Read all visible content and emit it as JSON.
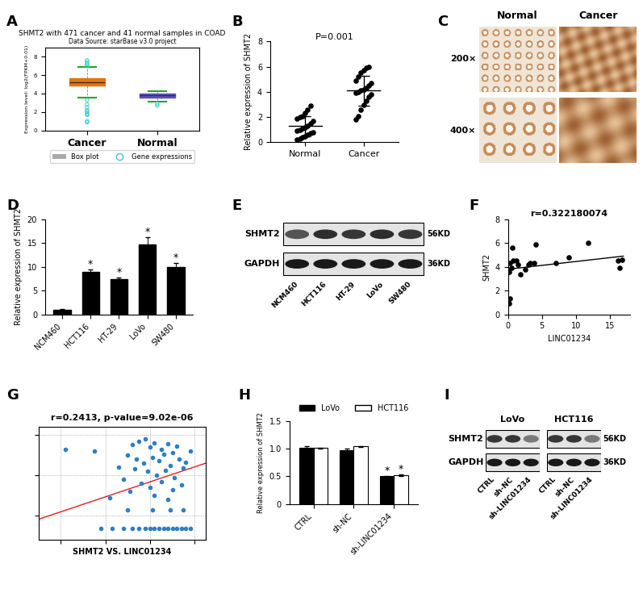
{
  "chart_data": [
    {
      "panel": "A",
      "type": "box",
      "title": "SHMT2 with 471 cancer and 41 normal samples in COAD",
      "subtitle": "Data Source: starBase v3.0 project",
      "y_label": "Expression level: log2(FPKM+0.01)",
      "categories": [
        "Cancer",
        "Normal"
      ],
      "series": [
        {
          "name": "Box plot",
          "colors": [
            "#e8720c",
            "#5b4fc4"
          ],
          "q1": [
            4.85,
            3.6
          ],
          "median": [
            5.2,
            3.85
          ],
          "q3": [
            5.65,
            4.0
          ],
          "whisker_low": [
            3.55,
            3.1
          ],
          "whisker_high": [
            6.85,
            4.3
          ]
        },
        {
          "name": "Gene expressions",
          "color": "#3cc8c8",
          "marker": "circle",
          "values": [
            [
              7.6,
              7.4,
              7.2,
              7.0,
              3.3,
              2.8,
              2.5,
              2.2,
              2.0,
              1.8,
              1.7,
              1.0,
              0.9
            ],
            [
              2.9,
              2.7
            ]
          ]
        }
      ],
      "ylim": [
        0,
        9
      ],
      "yticks": [
        0,
        2,
        4,
        6,
        8
      ],
      "legend": "below"
    },
    {
      "panel": "B",
      "type": "dot",
      "y_label": "Relative expression of SHMT2",
      "categories": [
        "Normal",
        "Cancer"
      ],
      "values": [
        [
          0.2,
          0.3,
          0.4,
          0.5,
          0.6,
          0.7,
          0.8,
          0.9,
          1.0,
          1.1,
          1.2,
          1.3,
          1.5,
          1.7,
          1.9,
          2.0,
          2.1,
          2.3,
          2.6,
          2.9
        ],
        [
          1.8,
          2.1,
          2.6,
          3.0,
          3.3,
          3.6,
          3.8,
          3.9,
          4.0,
          4.1,
          4.2,
          4.3,
          4.5,
          4.7,
          4.9,
          5.2,
          5.5,
          5.7,
          5.9,
          6.0
        ]
      ],
      "mean": [
        1.3,
        4.1
      ],
      "error": [
        0.8,
        1.2
      ],
      "annotations": [
        "P=0.001"
      ],
      "color": "#000000",
      "ylim": [
        0,
        8
      ],
      "yticks": [
        0,
        2,
        4,
        6,
        8
      ]
    },
    {
      "panel": "D",
      "type": "bar",
      "y_label": "Relative expression of SHMT2",
      "categories": [
        "NCM460",
        "HCT116",
        "HT-29",
        "LoVo",
        "SW480"
      ],
      "values": [
        1,
        8.9,
        7.4,
        14.8,
        10
      ],
      "error": [
        0.05,
        0.5,
        0.4,
        1.5,
        0.8
      ],
      "significance": [
        null,
        "*",
        "*",
        "*",
        "*"
      ],
      "color": "#000000",
      "ylim": [
        0,
        20
      ],
      "yticks": [
        0,
        5,
        10,
        15,
        20
      ]
    },
    {
      "panel": "F",
      "type": "scatter",
      "x_label": "LINC01234",
      "y_label": "SHMT2",
      "x": [
        0.2,
        0.3,
        0.2,
        0.3,
        0.5,
        0.6,
        0.8,
        1.2,
        1.5,
        1.8,
        2.5,
        3.0,
        3.3,
        3.8,
        4.1,
        7.0,
        9.0,
        11.8,
        16.2,
        16.5,
        16.8
      ],
      "values": [
        0.9,
        1.3,
        3.6,
        4.3,
        3.9,
        5.6,
        4.5,
        4.5,
        4.2,
        3.4,
        3.8,
        4.2,
        4.3,
        4.3,
        5.9,
        4.3,
        4.8,
        6.0,
        4.5,
        3.9,
        4.6
      ],
      "fit": {
        "slope": 0.065,
        "intercept": 3.8,
        "x": [
          0,
          17
        ],
        "color": "#000000"
      },
      "annotations": [
        "r=0.322180074"
      ],
      "color": "#000000",
      "xlim": [
        0,
        18
      ],
      "xticks": [
        0,
        5,
        10,
        15
      ],
      "ylim": [
        0,
        8
      ],
      "yticks": [
        0,
        2,
        4,
        6,
        8
      ]
    },
    {
      "panel": "G",
      "type": "scatter",
      "title": "r=0.2413, p-value=9.02e-06",
      "x_label": "SHMT2 VS. LINC01234",
      "x": [
        5.2,
        5.5,
        5.8,
        6.0,
        6.2,
        6.5,
        6.8,
        7.0,
        7.2,
        5.0,
        5.4,
        5.7,
        6.1,
        6.4,
        6.6,
        6.9,
        7.3,
        7.6,
        5.3,
        5.9,
        6.3,
        6.7,
        7.1,
        7.5,
        4.8,
        5.6,
        6.0,
        6.5,
        7.0,
        7.4,
        5.1,
        6.2,
        6.8,
        4.6,
        7.8,
        3.5,
        2.2,
        4.2,
        5.0,
        6.1,
        6.9,
        7.5,
        3.8,
        4.3,
        4.8,
        5.2,
        5.5,
        5.8,
        6.0,
        6.2,
        6.4,
        6.6,
        6.8,
        7.0,
        7.2,
        7.4,
        7.6,
        7.8
      ],
      "values": [
        3.8,
        4.2,
        4.5,
        3.5,
        4.0,
        3.2,
        3.9,
        2.8,
        3.6,
        2.5,
        2.0,
        1.5,
        2.2,
        1.8,
        2.6,
        1.2,
        2.0,
        1.6,
        0.8,
        0.5,
        0.0,
        0.6,
        -0.3,
        0.9,
        -0.5,
        -1.0,
        -1.5,
        -0.8,
        -1.8,
        -1.2,
        -2.0,
        -2.5,
        -3.0,
        1.0,
        3.0,
        3.0,
        3.2,
        -2.8,
        -4.3,
        -4.3,
        -4.3,
        -4.3,
        -6.64,
        -6.64,
        -6.64,
        -6.64,
        -6.64,
        -6.64,
        -6.64,
        -6.64,
        -6.64,
        -6.64,
        -6.64,
        -6.64,
        -6.64,
        -6.64,
        -6.64,
        -6.64
      ],
      "fit": {
        "slope": 0.93,
        "intercept": -6.4,
        "x": [
          1,
          8.5
        ],
        "color": "#e02020"
      },
      "color": "#2f7fc1",
      "xlim": [
        1,
        8.5
      ],
      "xticks": [
        2,
        4,
        6,
        8
      ],
      "ylim": [
        -8,
        6
      ],
      "yticks": [
        -5,
        0,
        5
      ],
      "grid": true,
      "tick_labels": false
    },
    {
      "panel": "H",
      "type": "bar",
      "y_label": "Relative expression of SHMT2",
      "categories": [
        "CTRL",
        "sh-NC",
        "sh-LINC01234"
      ],
      "series": [
        {
          "name": "LoVo",
          "color": "#000000",
          "values": [
            1.02,
            0.98,
            0.5
          ],
          "error": [
            0.03,
            0.02,
            0.01
          ],
          "significance": [
            null,
            null,
            "*"
          ]
        },
        {
          "name": "HCT116",
          "color": "#ffffff",
          "values": [
            1.01,
            1.04,
            0.52
          ],
          "error": [
            0.01,
            0.01,
            0.01
          ],
          "significance": [
            null,
            null,
            "*"
          ]
        }
      ],
      "ylim": [
        0,
        1.5
      ],
      "yticks": [
        0,
        0.5,
        {
          "value": 1,
          "label": "1.0"
        },
        1.5
      ],
      "legend": "above"
    }
  ],
  "panel_c": {
    "panel": "C",
    "columns": [
      "Normal",
      "Cancer"
    ],
    "rows": [
      "200×",
      "400×"
    ]
  },
  "panel_e": {
    "panel": "E",
    "lanes": [
      "NCM460",
      "HCT116",
      "HT-29",
      "LoVo",
      "SW480"
    ],
    "rows": [
      {
        "name": "SHMT2",
        "size": "56KD",
        "intensity": [
          0.7,
          0.9,
          0.85,
          0.9,
          0.85
        ]
      },
      {
        "name": "GAPDH",
        "size": "36KD",
        "intensity": [
          1,
          1,
          1,
          1,
          1
        ]
      }
    ]
  },
  "panel_i": {
    "panel": "I",
    "groups": [
      {
        "name": "LoVo",
        "lanes": [
          "CTRL",
          "sh-NC",
          "sh-LINC01234"
        ]
      },
      {
        "name": "HCT116",
        "lanes": [
          "CTRL",
          "sh-NC",
          "sh-LINC01234"
        ]
      }
    ],
    "rows": [
      {
        "name": "SHMT2",
        "size": "56KD",
        "intensity": [
          [
            0.85,
            0.85,
            0.5
          ],
          [
            0.85,
            0.85,
            0.5
          ]
        ]
      },
      {
        "name": "GAPDH",
        "size": "36KD",
        "intensity": [
          [
            1,
            1,
            1
          ],
          [
            1,
            1,
            1
          ]
        ]
      }
    ]
  }
}
